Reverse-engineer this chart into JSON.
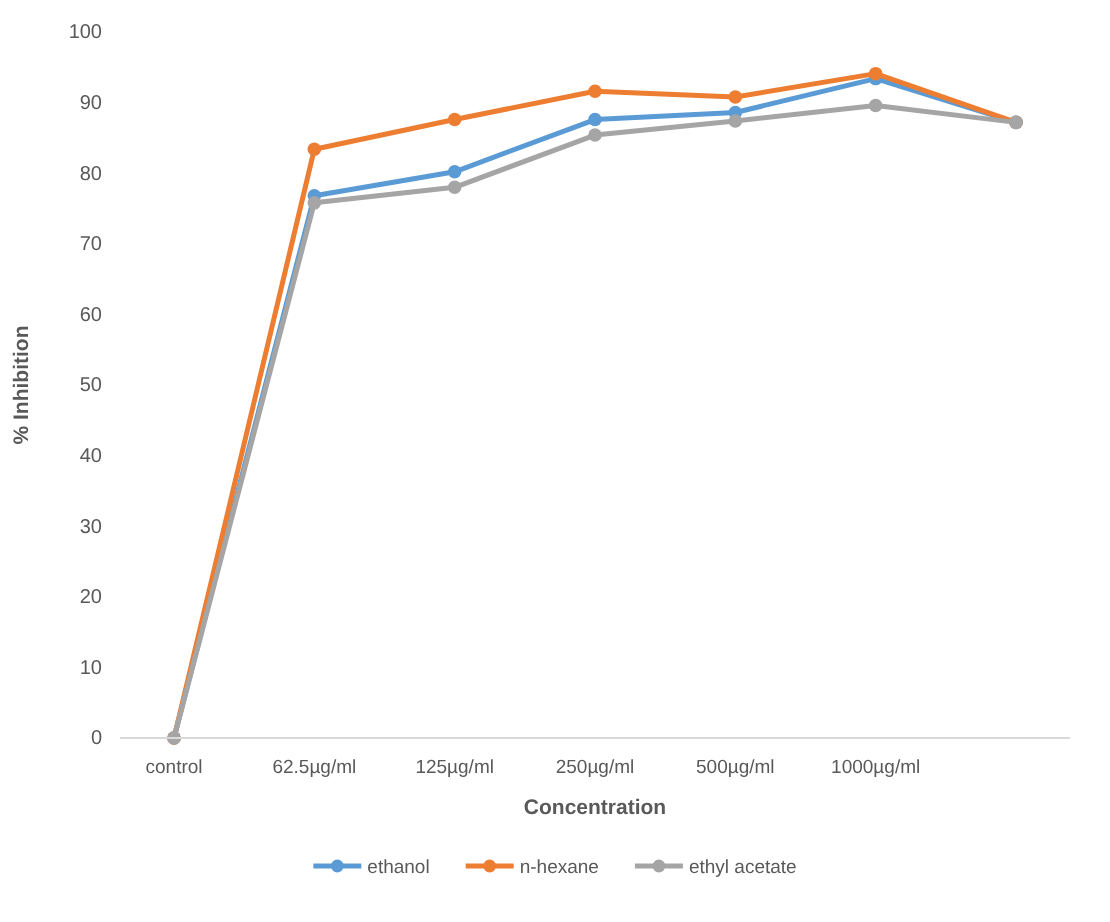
{
  "chart_data": {
    "type": "line",
    "xlabel": "Concentration",
    "ylabel": "% Inhibition",
    "categories": [
      "control",
      "62.5µg/ml",
      "125µg/ml",
      "250µg/ml",
      "500µg/ml",
      "1000µg/ml",
      null
    ],
    "series": [
      {
        "name": "ethanol",
        "color": "#5b9bd5",
        "values": [
          0,
          76.8,
          80.2,
          87.6,
          88.6,
          93.4,
          87.2
        ]
      },
      {
        "name": "n-hexane",
        "color": "#ed7d31",
        "values": [
          0,
          83.4,
          87.6,
          91.6,
          90.8,
          94.1,
          87.2
        ]
      },
      {
        "name": "ethyl acetate",
        "color": "#a5a5a5",
        "values": [
          0,
          75.8,
          78.0,
          85.4,
          87.4,
          89.6,
          87.2
        ]
      }
    ],
    "ylim": [
      0,
      100
    ],
    "yticks": [
      0,
      10,
      20,
      30,
      40,
      50,
      60,
      70,
      80,
      90,
      100
    ],
    "grid": false,
    "legend": "bottom",
    "marker": "circle",
    "line_style": "solid"
  }
}
